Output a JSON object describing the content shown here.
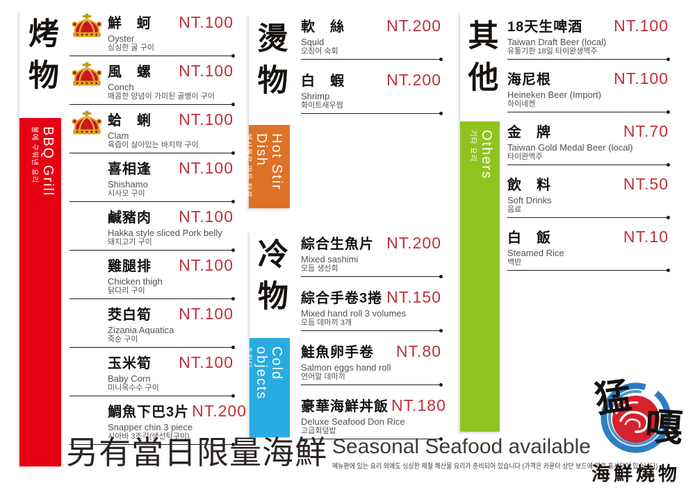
{
  "colors": {
    "bbq_red": "#e60012",
    "hot_orange": "#de7226",
    "cold_blue": "#29abe2",
    "others_green": "#8fc31f",
    "price": "#c22f38"
  },
  "sections": [
    {
      "id": "bbq",
      "title_zh": "烤物",
      "title_en": "BBQ Grill",
      "title_kr": "불에 구워낸 요리",
      "accent": "#e60012",
      "items": [
        {
          "crown": true,
          "title": "鮮　蚵",
          "en": "Oyster",
          "kr": "싱싱한 굴 구이",
          "price": "NT.100"
        },
        {
          "crown": true,
          "title": "風　螺",
          "en": "Conch",
          "kr": "매콤한 양념이 가미된 골뱅이 구이",
          "price": "NT.100"
        },
        {
          "crown": true,
          "title": "蛤　蜊",
          "en": "Clam",
          "kr": "육즙이 살아있는 바지락 구이",
          "price": "NT.100"
        },
        {
          "crown": false,
          "title": "喜相逢",
          "en": "Shishamo",
          "kr": "시사모 구이",
          "price": "NT.100"
        },
        {
          "crown": false,
          "title": "鹹豬肉",
          "en": "Hakka style sliced Pork belly",
          "kr": "돼지고기 구이",
          "price": "NT.100"
        },
        {
          "crown": false,
          "title": "雞腿排",
          "en": "Chicken thigh",
          "kr": "닭다리 구이",
          "price": "NT.100"
        },
        {
          "crown": false,
          "title": "茭白筍",
          "en": "Zizania Aquatica",
          "kr": "죽순 구이",
          "price": "NT.100"
        },
        {
          "crown": false,
          "title": "玉米筍",
          "en": "Baby Corn",
          "kr": "미니옥수수 구이",
          "price": "NT.100"
        },
        {
          "crown": false,
          "title": "鯛魚下巴3片",
          "en": "Snapper chin 3 piece",
          "kr": "시아바 3조각(생선턱구이)",
          "price": "NT.200"
        }
      ]
    },
    {
      "id": "hot",
      "title_zh": "燙物",
      "title_en": "Hot Stir Dish",
      "title_kr": "해산물로 만든 탕류",
      "accent": "#de7226",
      "items": [
        {
          "crown": false,
          "title": "軟　絲",
          "en": "Squid",
          "kr": "오징어 숙회",
          "price": "NT.200"
        },
        {
          "crown": false,
          "title": "白　蝦",
          "en": "Shrimp",
          "kr": "화이트새우찜",
          "price": "NT.200"
        }
      ]
    },
    {
      "id": "cold",
      "title_zh": "冷物",
      "title_en": "Cold objects",
      "title_kr": "추웠다",
      "accent": "#29abe2",
      "items": [
        {
          "crown": false,
          "title": "綜合生魚片",
          "en": "Mixed sashimi",
          "kr": "모듬 생선회",
          "price": "NT.200"
        },
        {
          "crown": false,
          "title": "綜合手卷3捲",
          "en": "Mixed hand roll 3 volumes",
          "kr": "모듬 데마끼 3개",
          "price": "NT.150"
        },
        {
          "crown": false,
          "title": "鮭魚卵手卷",
          "en": "Salmon eggs hand roll",
          "kr": "연어알 데마끼",
          "price": "NT.80"
        },
        {
          "crown": false,
          "title": "豪華海鮮丼飯",
          "en": "Deluxe Seafood Don Rice",
          "kr": "고급회덮밥",
          "price": "NT.180"
        }
      ]
    },
    {
      "id": "others",
      "title_zh": "其他",
      "title_en": "Others",
      "title_kr": "기타 요리",
      "accent": "#8fc31f",
      "items": [
        {
          "crown": false,
          "title": "18天生啤酒",
          "en": "Taiwan Draft Beer (local)",
          "kr": "유통기한 18일 타이완생맥주",
          "price": "NT.100"
        },
        {
          "crown": false,
          "title": "海尼根",
          "en": "Heineken Beer (Import)",
          "kr": "하이네켄",
          "price": "NT.100"
        },
        {
          "crown": false,
          "title": "金　牌",
          "en": "Taiwan Gold Medal Beer (local)",
          "kr": "타이완맥주",
          "price": "NT.70"
        },
        {
          "crown": false,
          "title": "飲　料",
          "en": "Soft Drinks",
          "kr": "음료",
          "price": "NT.50"
        },
        {
          "crown": false,
          "title": "白　飯",
          "en": "Steamed Rice",
          "kr": "백반",
          "price": "NT.10"
        }
      ]
    }
  ],
  "footer": {
    "zh": "另有當日限量海鮮",
    "en": "Seasonal Seafood available",
    "kr": "메뉴판에 있는 요리 외에도 싱싱한 제철 해산물 요리가 준비되어 있습니다 (가격은 카운터 상단 보드에 따로 표시되어 있습니다)"
  },
  "logo": {
    "char1": "猛",
    "char2": "嘎",
    "subtitle": "海鮮燒物"
  }
}
